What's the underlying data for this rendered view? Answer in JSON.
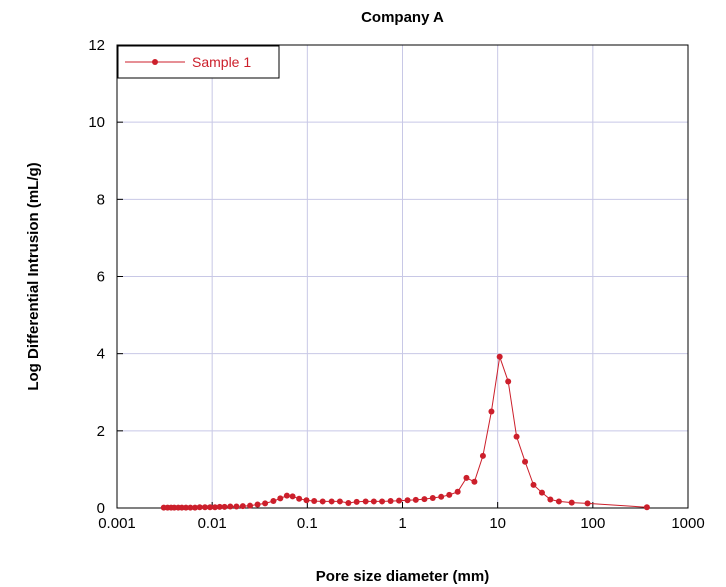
{
  "chart_data": {
    "type": "scatter",
    "title": "Company A",
    "xlabel": "Pore size diameter (mm)",
    "ylabel": "Log Differential Intrusion (mL/g)",
    "x_scale": "log",
    "xlim": [
      0.001,
      1000
    ],
    "ylim": [
      0,
      12
    ],
    "x_ticks": [
      0.001,
      0.01,
      0.1,
      1,
      10,
      100,
      1000
    ],
    "x_tick_labels": [
      "0.001",
      "0.01",
      "0.1",
      "1",
      "10",
      "100",
      "1000"
    ],
    "y_ticks": [
      0,
      2,
      4,
      6,
      8,
      10,
      12
    ],
    "y_tick_labels": [
      "0",
      "2",
      "4",
      "6",
      "8",
      "10",
      "12"
    ],
    "grid": true,
    "legend_position": "top-left",
    "colors": {
      "series": "#cc1f2b",
      "grid": "#c8c8e6",
      "axis": "#000000"
    },
    "series": [
      {
        "name": "Sample 1",
        "x": [
          0.0031,
          0.0034,
          0.0037,
          0.004,
          0.0044,
          0.0048,
          0.0053,
          0.0059,
          0.0066,
          0.0074,
          0.0084,
          0.0095,
          0.0107,
          0.012,
          0.0135,
          0.0155,
          0.018,
          0.021,
          0.025,
          0.03,
          0.036,
          0.044,
          0.052,
          0.061,
          0.07,
          0.082,
          0.098,
          0.118,
          0.145,
          0.18,
          0.22,
          0.27,
          0.33,
          0.41,
          0.5,
          0.61,
          0.75,
          0.92,
          1.13,
          1.38,
          1.7,
          2.08,
          2.55,
          3.1,
          3.8,
          4.7,
          5.7,
          7.0,
          8.6,
          10.5,
          12.9,
          15.8,
          19.4,
          23.8,
          29.2,
          35.8,
          44,
          60,
          88,
          370
        ],
        "y": [
          0.01,
          0.01,
          0.01,
          0.01,
          0.01,
          0.01,
          0.01,
          0.01,
          0.01,
          0.02,
          0.02,
          0.02,
          0.02,
          0.03,
          0.03,
          0.04,
          0.04,
          0.05,
          0.06,
          0.09,
          0.12,
          0.18,
          0.25,
          0.32,
          0.3,
          0.24,
          0.2,
          0.18,
          0.17,
          0.17,
          0.17,
          0.13,
          0.16,
          0.17,
          0.17,
          0.17,
          0.18,
          0.19,
          0.2,
          0.21,
          0.23,
          0.26,
          0.29,
          0.34,
          0.42,
          0.78,
          0.68,
          1.35,
          2.5,
          3.92,
          3.28,
          1.85,
          1.2,
          0.6,
          0.4,
          0.22,
          0.17,
          0.14,
          0.12,
          0.02
        ]
      }
    ]
  }
}
